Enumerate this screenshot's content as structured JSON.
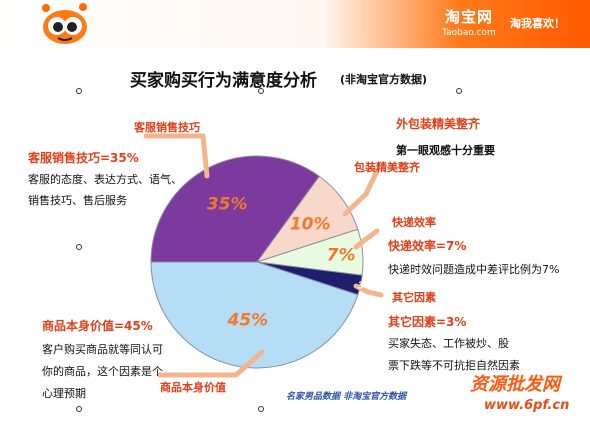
{
  "header": {
    "logo_cn": "淘宝网",
    "logo_en": "Taobao.com",
    "slogan": "淘我喜欢！"
  },
  "title": "买家购买行为满意度分析",
  "subtitle": "(非淘宝官方数据)",
  "annotations": {
    "service": {
      "heading": "客服销售技巧=35%",
      "lines": [
        "客服的态度、表达方式、语气、",
        "销售技巧、售后服务"
      ]
    },
    "packaging": {
      "heading": "外包装精美整齐",
      "lines": [
        "第一眼观感十分重要"
      ]
    },
    "delivery": {
      "heading": "快递效率=7%",
      "lines": [
        "快递时效问题造成中差评比例为7%"
      ]
    },
    "other": {
      "heading": "其它因素=3%",
      "lines": [
        "买家失态、工作被炒、股",
        "票下跌等不可抗拒自然因素"
      ]
    },
    "product": {
      "heading": "商品本身价值=45%",
      "lines": [
        "客户购买商品就等同认可",
        "你的商品，这个因素是个",
        "心理预期"
      ]
    }
  },
  "footer_note": "名家男品数据  非淘宝官方数据",
  "watermark": {
    "text_cn": "资源批发网",
    "url": "www.6pf.cn"
  },
  "chart_data": {
    "type": "pie",
    "title": "买家购买行为满意度分析",
    "subtitle": "(非淘宝官方数据)",
    "categories": [
      "客服销售技巧",
      "包装精美整齐",
      "快递效率",
      "其它因素",
      "商品本身价值"
    ],
    "values": [
      35,
      10,
      7,
      3,
      45
    ],
    "value_labels": [
      "35%",
      "10%",
      "7%",
      "3%",
      "45%"
    ],
    "colors": [
      "#7d3a9e",
      "#f8d8ca",
      "#e8fbe0",
      "#1c1f6b",
      "#b5ddf6"
    ],
    "label_colors": [
      "#f07a2a",
      "#f07a2a",
      "#f07a2a",
      "#f07a2a",
      "#f07a2a"
    ],
    "start": "180 degrees (9 o'clock), clockwise",
    "legend": "callout labels with connector lines"
  }
}
